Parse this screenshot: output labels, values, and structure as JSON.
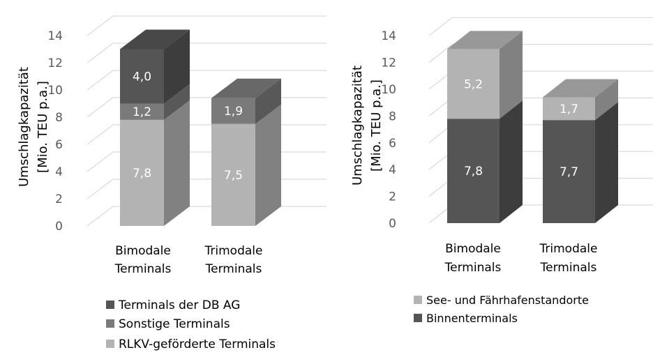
{
  "chart_data": [
    {
      "type": "bar",
      "stacked": true,
      "three_d": true,
      "ylabel_lines": [
        "Umschlagkapazität",
        "[Mio. TEU p.a.]"
      ],
      "ylim": [
        0,
        14
      ],
      "yticks": [
        "0",
        "2",
        "4",
        "6",
        "8",
        "10",
        "12",
        "14"
      ],
      "grid": true,
      "legend_position": "bottom",
      "categories": [
        [
          "Bimodale",
          "Terminals"
        ],
        [
          "Trimodale",
          "Terminals"
        ]
      ],
      "series": [
        {
          "name": "RLKV-geförderte Terminals",
          "values": [
            7.8,
            7.5
          ],
          "labels": [
            "7,8",
            "7,5"
          ],
          "color": "#b3b3b3"
        },
        {
          "name": "Sonstige Terminals",
          "values": [
            1.2,
            1.9
          ],
          "labels": [
            "1,2",
            "1,9"
          ],
          "color": "#7a7a7a"
        },
        {
          "name": "Terminals der DB AG",
          "values": [
            4.0,
            null
          ],
          "labels": [
            "4,0",
            ""
          ],
          "color": "#555555"
        }
      ],
      "legend_order": [
        "Terminals der DB AG",
        "Sonstige Terminals",
        "RLKV-geförderte Terminals"
      ]
    },
    {
      "type": "bar",
      "stacked": true,
      "three_d": true,
      "ylabel_lines": [
        "Umschlagkapazität",
        "[Mio. TEU p.a.]"
      ],
      "ylim": [
        0,
        14
      ],
      "yticks": [
        "0",
        "2",
        "4",
        "6",
        "8",
        "10",
        "12",
        "14"
      ],
      "grid": true,
      "legend_position": "bottom",
      "categories": [
        [
          "Bimodale",
          "Terminals"
        ],
        [
          "Trimodale",
          "Terminals"
        ]
      ],
      "series": [
        {
          "name": "Binnenterminals",
          "values": [
            7.8,
            7.7
          ],
          "labels": [
            "7,8",
            "7,7"
          ],
          "color": "#555555"
        },
        {
          "name": "See- und Fährhafenstandorte",
          "values": [
            5.2,
            1.7
          ],
          "labels": [
            "5,2",
            "1,7"
          ],
          "color": "#b3b3b3"
        }
      ],
      "legend_order": [
        "See- und Fährhafenstandorte",
        "Binnenterminals"
      ]
    }
  ]
}
